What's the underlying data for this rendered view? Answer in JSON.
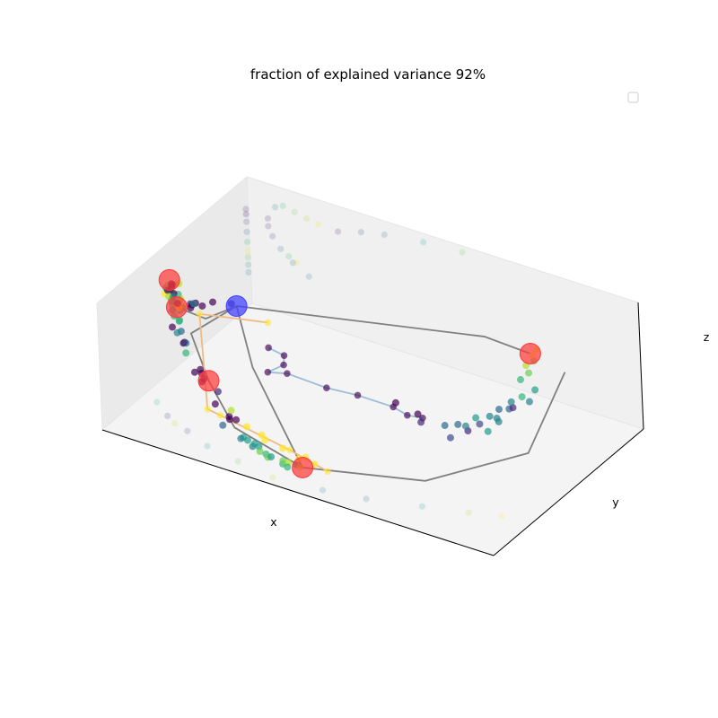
{
  "chart_data": {
    "type": "scatter",
    "projection": "3d",
    "title": "fraction of explained variance 92%",
    "xlabel": "x",
    "ylabel": "y",
    "zlabel": "z",
    "legend": {
      "placement": "top-right",
      "entries": []
    },
    "grid": false,
    "colormap": "viridis",
    "ticks_visible": false,
    "colors": {
      "pane_left": "#eaeaea",
      "pane_back": "#f0f0f0",
      "pane_floor": "#f4f4f4",
      "edge": "#000000",
      "pane_edge": "#e6e6e6",
      "path_gray": "#808080",
      "branch_blue": "#9cbcd8",
      "branch_orange": "#f2ba82",
      "node_red": "#ff3b3b",
      "node_blue": "#4040ff"
    },
    "xlim": [
      0,
      10
    ],
    "ylim": [
      0,
      10
    ],
    "zlim": [
      0,
      10
    ],
    "tree_nodes": [
      {
        "role": "root",
        "color": "blue",
        "x": 1.99,
        "y": 4.04,
        "z": 7.72
      },
      {
        "role": "leaf",
        "color": "red",
        "x": 0.68,
        "y": 3.44,
        "z": 6.93
      },
      {
        "role": "leaf",
        "color": "red",
        "x": 0.02,
        "y": 4.68,
        "z": 7.19
      },
      {
        "role": "leaf",
        "color": "red",
        "x": 1.97,
        "y": 2.09,
        "z": 3.75
      },
      {
        "role": "leaf",
        "color": "red",
        "x": 5.03,
        "y": 0.29,
        "z": 1.73
      },
      {
        "role": "leaf",
        "color": "red",
        "x": 8.22,
        "y": 7.34,
        "z": 6.85
      }
    ],
    "gray_paths": [
      [
        {
          "x": 1.99,
          "y": 4.04,
          "z": 7.72
        },
        {
          "x": 1.53,
          "y": 3.16,
          "z": 7.15
        },
        {
          "x": 0.68,
          "y": 3.44,
          "z": 6.93
        }
      ],
      [
        {
          "x": 1.99,
          "y": 4.04,
          "z": 7.72
        },
        {
          "x": 1.36,
          "y": 2.6,
          "z": 6.38
        },
        {
          "x": 1.97,
          "y": 2.09,
          "z": 3.75
        },
        {
          "x": 3.15,
          "y": 0.69,
          "z": 2.63
        },
        {
          "x": 5.03,
          "y": 0.29,
          "z": 1.73
        }
      ],
      [
        {
          "x": 1.99,
          "y": 4.04,
          "z": 7.72
        },
        {
          "x": 2.88,
          "y": 2.69,
          "z": 5.12
        },
        {
          "x": 5.03,
          "y": 0.29,
          "z": 1.73
        },
        {
          "x": 7.28,
          "y": 2.56,
          "z": 0.64
        },
        {
          "x": 8.67,
          "y": 5.82,
          "z": 0.95
        },
        {
          "x": 8.67,
          "y": 8.4,
          "z": 4.77
        }
      ],
      [
        {
          "x": 1.99,
          "y": 4.04,
          "z": 7.72
        },
        {
          "x": 7.31,
          "y": 6.7,
          "z": 7.93
        },
        {
          "x": 8.22,
          "y": 7.34,
          "z": 6.85
        }
      ]
    ],
    "branch_blue": [
      {
        "x": 3.37,
        "y": 2.55,
        "z": 7.29
      },
      {
        "x": 3.48,
        "y": 3.26,
        "z": 6.07
      },
      {
        "x": 3.31,
        "y": 3.63,
        "z": 4.79
      },
      {
        "x": 3.03,
        "y": 3.28,
        "z": 4.29
      },
      {
        "x": 3.51,
        "y": 3.33,
        "z": 4.61
      },
      {
        "x": 4.52,
        "y": 3.32,
        "z": 4.49
      },
      {
        "x": 5.23,
        "y": 3.54,
        "z": 4.39
      },
      {
        "x": 6.18,
        "y": 3.44,
        "z": 4.51
      },
      {
        "x": 6.49,
        "y": 3.55,
        "z": 4.05
      },
      {
        "x": 6.88,
        "y": 3.56,
        "z": 4.21
      }
    ],
    "branch_orange": [
      {
        "x": 2.91,
        "y": 3.73,
        "z": 7.64
      },
      {
        "x": 0.94,
        "y": 4.24,
        "z": 5.86
      },
      {
        "x": 2.19,
        "y": 1.39,
        "z": 2.43
      },
      {
        "x": 2.71,
        "y": 0.91,
        "z": 2.93
      },
      {
        "x": 4.38,
        "y": 1.12,
        "z": 1.65
      },
      {
        "x": 5.49,
        "y": 0.75,
        "z": 1.42
      }
    ],
    "points": [
      {
        "x": 1.89,
        "y": 3.96,
        "z": 7.89,
        "c": 0.1
      },
      {
        "x": 1.14,
        "y": 3.52,
        "z": 7.63,
        "c": 0.03
      },
      {
        "x": 1.42,
        "y": 3.93,
        "z": 7.58,
        "c": 0.06
      },
      {
        "x": 0.95,
        "y": 3.65,
        "z": 7.25,
        "c": 0.12
      },
      {
        "x": 1.29,
        "y": 3.57,
        "z": 7.5,
        "c": 0.0
      },
      {
        "x": 1.09,
        "y": 3.41,
        "z": 7.55,
        "c": 0.06
      },
      {
        "x": 0.82,
        "y": 3.27,
        "z": 6.98,
        "c": 0.5
      },
      {
        "x": 1.05,
        "y": 3.41,
        "z": 7.27,
        "c": 0.08
      },
      {
        "x": 0.84,
        "y": 3.46,
        "z": 7.1,
        "c": 0.82
      },
      {
        "x": 0.7,
        "y": 3.33,
        "z": 7.29,
        "c": 0.86
      },
      {
        "x": 0.81,
        "y": 3.35,
        "z": 7.23,
        "c": 0.9
      },
      {
        "x": 1.11,
        "y": 3.46,
        "z": 7.62,
        "c": 0.42
      },
      {
        "x": 0.73,
        "y": 3.28,
        "z": 7.07,
        "c": 0.85
      },
      {
        "x": 0.54,
        "y": 3.54,
        "z": 7.29,
        "c": 0.99
      },
      {
        "x": 0.84,
        "y": 3.4,
        "z": 7.05,
        "c": 0.65
      },
      {
        "x": 0.62,
        "y": 3.77,
        "z": 7.04,
        "c": 0.74
      },
      {
        "x": 0.75,
        "y": 3.54,
        "z": 7.55,
        "c": 0.82
      },
      {
        "x": 0.81,
        "y": 3.28,
        "z": 7.15,
        "c": 0.94
      },
      {
        "x": 0.47,
        "y": 3.72,
        "z": 7.23,
        "c": 0.61
      },
      {
        "x": 0.45,
        "y": 3.72,
        "z": 6.9,
        "c": 0.12
      },
      {
        "x": 0.23,
        "y": 4.25,
        "z": 7.24,
        "c": 0.69
      },
      {
        "x": 0.15,
        "y": 4.39,
        "z": 7.18,
        "c": 0.79
      },
      {
        "x": 0.26,
        "y": 4.39,
        "z": 7.31,
        "c": 0.82
      },
      {
        "x": 0.02,
        "y": 4.34,
        "z": 6.44,
        "c": 0.93
      },
      {
        "x": 0.2,
        "y": 4.23,
        "z": 6.98,
        "c": 0.68
      },
      {
        "x": 0.01,
        "y": 4.46,
        "z": 6.79,
        "c": 0.58
      },
      {
        "x": 0.29,
        "y": 4.12,
        "z": 6.91,
        "c": 0.75
      },
      {
        "x": 0.29,
        "y": 4.61,
        "z": 7.23,
        "c": 0.89
      },
      {
        "x": 0.14,
        "y": 4.47,
        "z": 6.83,
        "c": 0.69
      },
      {
        "x": 0.02,
        "y": 4.58,
        "z": 6.88,
        "c": 0.79
      },
      {
        "x": 0.39,
        "y": 4.29,
        "z": 6.81,
        "c": 0.69
      },
      {
        "x": 0.14,
        "y": 4.25,
        "z": 6.91,
        "c": 0.05
      },
      {
        "x": 0.13,
        "y": 4.59,
        "z": 7.03,
        "c": 0.13
      },
      {
        "x": 0.32,
        "y": 4.18,
        "z": 6.91,
        "c": 0.09
      },
      {
        "x": 0.06,
        "y": 4.7,
        "z": 6.9,
        "c": 0.06
      },
      {
        "x": 0.09,
        "y": 4.63,
        "z": 6.76,
        "c": 0.05
      },
      {
        "x": 0.2,
        "y": 4.15,
        "z": 6.59,
        "c": 0.81
      },
      {
        "x": 0.29,
        "y": 4.07,
        "z": 6.5,
        "c": 0.7
      },
      {
        "x": 0.18,
        "y": 4.51,
        "z": 6.19,
        "c": 0.49
      },
      {
        "x": 0.34,
        "y": 4.0,
        "z": 6.27,
        "c": 0.62
      },
      {
        "x": 0.4,
        "y": 3.85,
        "z": 6.0,
        "c": 0.42
      },
      {
        "x": 0.36,
        "y": 4.3,
        "z": 6.05,
        "c": 0.09
      },
      {
        "x": 0.44,
        "y": 3.85,
        "z": 5.58,
        "c": 0.65
      },
      {
        "x": 0.61,
        "y": 3.74,
        "z": 5.46,
        "c": 0.56
      },
      {
        "x": 0.62,
        "y": 3.25,
        "z": 5.49,
        "c": 0.09
      },
      {
        "x": 0.76,
        "y": 3.46,
        "z": 5.09,
        "c": 0.32
      },
      {
        "x": 0.54,
        "y": 3.93,
        "z": 5.3,
        "c": 0.63
      },
      {
        "x": 0.71,
        "y": 3.33,
        "z": 5.05,
        "c": 0.45
      },
      {
        "x": 1.0,
        "y": 2.98,
        "z": 4.87,
        "c": 0.07
      },
      {
        "x": 1.02,
        "y": 3.1,
        "z": 4.77,
        "c": 0.4
      },
      {
        "x": 1.19,
        "y": 2.64,
        "z": 4.62,
        "c": 0.62
      },
      {
        "x": 0.91,
        "y": 3.27,
        "z": 4.56,
        "c": 0.1
      },
      {
        "x": 1.74,
        "y": 2.22,
        "z": 3.98,
        "c": 0.09
      },
      {
        "x": 1.56,
        "y": 2.6,
        "z": 3.72,
        "c": 0.05
      },
      {
        "x": 1.52,
        "y": 2.33,
        "z": 3.74,
        "c": 0.04
      },
      {
        "x": 1.83,
        "y": 2.0,
        "z": 3.62,
        "c": 0.08
      },
      {
        "x": 1.8,
        "y": 2.21,
        "z": 3.61,
        "c": 0.04
      },
      {
        "x": 2.26,
        "y": 1.94,
        "z": 3.33,
        "c": 0.11
      },
      {
        "x": 2.36,
        "y": 1.48,
        "z": 2.91,
        "c": 0.07
      },
      {
        "x": 2.84,
        "y": 1.15,
        "z": 2.73,
        "c": 0.03
      },
      {
        "x": 2.86,
        "y": 1.13,
        "z": 2.54,
        "c": 0.04
      },
      {
        "x": 3.02,
        "y": 1.14,
        "z": 2.66,
        "c": 0.06
      },
      {
        "x": 2.81,
        "y": 0.79,
        "z": 2.37,
        "c": 0.32
      },
      {
        "x": 3.39,
        "y": 0.64,
        "z": 2.13,
        "c": 0.5
      },
      {
        "x": 3.37,
        "y": 0.52,
        "z": 2.14,
        "c": 0.43
      },
      {
        "x": 3.55,
        "y": 0.51,
        "z": 2.2,
        "c": 0.5
      },
      {
        "x": 3.72,
        "y": 0.39,
        "z": 2.0,
        "c": 0.45
      },
      {
        "x": 3.68,
        "y": 0.62,
        "z": 1.95,
        "c": 0.5
      },
      {
        "x": 3.81,
        "y": 0.57,
        "z": 1.9,
        "c": 0.55
      },
      {
        "x": 3.92,
        "y": 0.35,
        "z": 1.84,
        "c": 0.7
      },
      {
        "x": 4.07,
        "y": 0.36,
        "z": 1.77,
        "c": 0.62
      },
      {
        "x": 4.19,
        "y": 0.17,
        "z": 1.83,
        "c": 0.79
      },
      {
        "x": 4.22,
        "y": 0.31,
        "z": 1.75,
        "c": 0.58
      },
      {
        "x": 4.55,
        "y": 0.22,
        "z": 1.61,
        "c": 0.68
      },
      {
        "x": 4.53,
        "y": 0.29,
        "z": 1.77,
        "c": 0.76
      },
      {
        "x": 4.62,
        "y": 0.4,
        "z": 1.62,
        "c": 0.82
      },
      {
        "x": 4.72,
        "y": 0.09,
        "z": 1.66,
        "c": 0.69
      },
      {
        "x": 4.84,
        "y": 0.37,
        "z": 1.68,
        "c": 0.5
      },
      {
        "x": 4.97,
        "y": 0.28,
        "z": 1.72,
        "c": 0.85
      },
      {
        "x": 4.3,
        "y": 0.89,
        "z": 1.93,
        "c": 0.93
      },
      {
        "x": 5.13,
        "y": 0.82,
        "z": 1.56,
        "c": 0.94
      },
      {
        "x": 4.77,
        "y": 0.72,
        "z": 1.74,
        "c": 0.98
      },
      {
        "x": 3.83,
        "y": 0.94,
        "z": 2.07,
        "c": 0.94
      },
      {
        "x": 4.85,
        "y": 0.96,
        "z": 1.7,
        "c": 0.95
      },
      {
        "x": 3.31,
        "y": 1.09,
        "z": 2.45,
        "c": 0.97
      },
      {
        "x": 3.65,
        "y": 1.18,
        "z": 2.04,
        "c": 0.99
      },
      {
        "x": 2.74,
        "y": 1.54,
        "z": 2.72,
        "c": 0.89
      },
      {
        "x": 5.91,
        "y": 4.28,
        "z": 3.73,
        "c": 0.05
      },
      {
        "x": 6.55,
        "y": 4.08,
        "z": 3.67,
        "c": 0.08
      },
      {
        "x": 6.72,
        "y": 3.84,
        "z": 3.44,
        "c": 0.1
      },
      {
        "x": 7.48,
        "y": 3.81,
        "z": 3.0,
        "c": 0.23
      },
      {
        "x": 7.17,
        "y": 4.25,
        "z": 3.22,
        "c": 0.35
      },
      {
        "x": 7.49,
        "y": 4.3,
        "z": 3.57,
        "c": 0.31
      },
      {
        "x": 7.75,
        "y": 4.28,
        "z": 3.34,
        "c": 0.13
      },
      {
        "x": 7.65,
        "y": 4.4,
        "z": 3.5,
        "c": 0.42
      },
      {
        "x": 7.8,
        "y": 4.93,
        "z": 3.28,
        "c": 0.22
      },
      {
        "x": 8.2,
        "y": 4.45,
        "z": 3.57,
        "c": 0.51
      },
      {
        "x": 7.67,
        "y": 5.02,
        "z": 3.55,
        "c": 0.52
      },
      {
        "x": 8.2,
        "y": 5.17,
        "z": 3.62,
        "c": 0.45
      },
      {
        "x": 8.2,
        "y": 5.06,
        "z": 4.0,
        "c": 0.49
      },
      {
        "x": 7.96,
        "y": 5.2,
        "z": 3.78,
        "c": 0.4
      },
      {
        "x": 8.0,
        "y": 5.72,
        "z": 3.85,
        "c": 0.35
      },
      {
        "x": 8.24,
        "y": 5.78,
        "z": 4.06,
        "c": 0.3
      },
      {
        "x": 8.33,
        "y": 5.8,
        "z": 4.23,
        "c": 0.16
      },
      {
        "x": 8.22,
        "y": 5.98,
        "z": 4.39,
        "c": 0.42
      },
      {
        "x": 8.58,
        "y": 6.26,
        "z": 4.49,
        "c": 0.48
      },
      {
        "x": 8.4,
        "y": 6.24,
        "z": 4.72,
        "c": 0.63
      },
      {
        "x": 8.56,
        "y": 6.7,
        "z": 4.96,
        "c": 0.55
      },
      {
        "x": 8.2,
        "y": 6.69,
        "z": 5.42,
        "c": 0.65
      },
      {
        "x": 8.29,
        "y": 7.01,
        "z": 5.72,
        "c": 0.72
      },
      {
        "x": 8.12,
        "y": 7.28,
        "z": 5.88,
        "c": 0.84
      },
      {
        "x": 8.22,
        "y": 7.56,
        "z": 6.05,
        "c": 0.77
      },
      {
        "x": 8.14,
        "y": 7.66,
        "z": 6.33,
        "c": 0.92
      },
      {
        "x": 8.15,
        "y": 7.94,
        "z": 6.52,
        "c": 0.95
      }
    ],
    "shadow_points": [
      {
        "plane": "xz",
        "x": 0.9,
        "z": 8.6,
        "c": 0.6
      },
      {
        "plane": "xz",
        "x": 1.2,
        "z": 8.4,
        "c": 0.75
      },
      {
        "plane": "xz",
        "x": 1.5,
        "z": 8.2,
        "c": 0.82
      },
      {
        "plane": "xz",
        "x": 1.8,
        "z": 8.05,
        "c": 0.9
      },
      {
        "plane": "xz",
        "x": 0.7,
        "z": 8.3,
        "c": 0.4
      },
      {
        "plane": "xz",
        "x": 2.3,
        "z": 7.95,
        "c": 0.1
      },
      {
        "plane": "xz",
        "x": 2.9,
        "z": 8.5,
        "c": 0.2
      },
      {
        "plane": "xz",
        "x": 3.5,
        "z": 8.9,
        "c": 0.3
      },
      {
        "plane": "xz",
        "x": 4.5,
        "z": 9.3,
        "c": 0.5
      },
      {
        "plane": "xz",
        "x": 5.5,
        "z": 9.5,
        "c": 0.7
      },
      {
        "plane": "xz",
        "x": 0.5,
        "z": 7.2,
        "c": 0.1
      },
      {
        "plane": "xz",
        "x": 0.5,
        "z": 6.6,
        "c": 0.15
      },
      {
        "plane": "xz",
        "x": 0.6,
        "z": 5.9,
        "c": 0.2
      },
      {
        "plane": "xz",
        "x": 0.8,
        "z": 5.1,
        "c": 0.3
      },
      {
        "plane": "xz",
        "x": 1.1,
        "z": 4.3,
        "c": 0.35
      },
      {
        "plane": "xz",
        "x": 1.5,
        "z": 3.6,
        "c": 0.4
      },
      {
        "plane": "xz",
        "x": 1.0,
        "z": 4.7,
        "c": 0.6
      },
      {
        "plane": "xz",
        "x": 1.2,
        "z": 4.4,
        "c": 0.9
      },
      {
        "plane": "yz",
        "y": 9.85,
        "z": 7.6,
        "c": 0.1
      },
      {
        "plane": "yz",
        "y": 9.85,
        "z": 7.2,
        "c": 0.05
      },
      {
        "plane": "yz",
        "y": 9.85,
        "z": 6.6,
        "c": 0.2
      },
      {
        "plane": "yz",
        "y": 9.85,
        "z": 5.8,
        "c": 0.3
      },
      {
        "plane": "yz",
        "y": 9.85,
        "z": 5.0,
        "c": 0.6
      },
      {
        "plane": "yz",
        "y": 9.85,
        "z": 4.3,
        "c": 0.9
      },
      {
        "plane": "yz",
        "y": 9.85,
        "z": 3.8,
        "c": 0.75
      },
      {
        "plane": "yz",
        "y": 9.85,
        "z": 3.2,
        "c": 0.5
      },
      {
        "plane": "yz",
        "y": 9.85,
        "z": 2.6,
        "c": 0.4
      },
      {
        "plane": "xy",
        "x": 1.6,
        "y": 1.5,
        "c": 0.2
      },
      {
        "plane": "xy",
        "x": 2.3,
        "y": 1.0,
        "c": 0.5
      },
      {
        "plane": "xy",
        "x": 3.2,
        "y": 0.7,
        "c": 0.7
      },
      {
        "plane": "xy",
        "x": 4.2,
        "y": 0.4,
        "c": 0.85
      },
      {
        "plane": "xy",
        "x": 5.4,
        "y": 0.6,
        "c": 0.4
      },
      {
        "plane": "xy",
        "x": 6.4,
        "y": 0.9,
        "c": 0.3
      },
      {
        "plane": "xy",
        "x": 7.6,
        "y": 1.5,
        "c": 0.5
      },
      {
        "plane": "xy",
        "x": 8.6,
        "y": 2.0,
        "c": 0.8
      },
      {
        "plane": "xy",
        "x": 9.3,
        "y": 2.4,
        "c": 0.95
      },
      {
        "plane": "xy",
        "x": 0.4,
        "y": 2.6,
        "c": 0.6
      },
      {
        "plane": "xy",
        "x": 0.9,
        "y": 2.0,
        "c": 0.15
      },
      {
        "plane": "xy",
        "x": 1.2,
        "y": 1.7,
        "c": 0.85
      }
    ]
  }
}
